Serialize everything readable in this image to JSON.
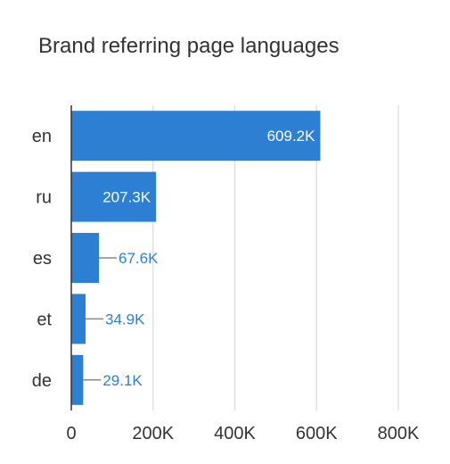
{
  "chart_data": {
    "type": "bar",
    "orientation": "horizontal",
    "title": "Brand referring page languages",
    "categories": [
      "en",
      "ru",
      "es",
      "et",
      "de"
    ],
    "values": [
      609200,
      207300,
      67600,
      34900,
      29100
    ],
    "value_labels": [
      "609.2K",
      "207.3K",
      "67.6K",
      "34.9K",
      "29.1K"
    ],
    "xlim": [
      0,
      800000
    ],
    "x_ticks": [
      0,
      200000,
      400000,
      600000,
      800000
    ],
    "x_tick_labels": [
      "0",
      "200K",
      "400K",
      "600K",
      "800K"
    ],
    "grid": true,
    "bar_color": "#2d7fd3",
    "label_outside_color": "#2d7fd3",
    "label_inside_color": "#ffffff"
  }
}
